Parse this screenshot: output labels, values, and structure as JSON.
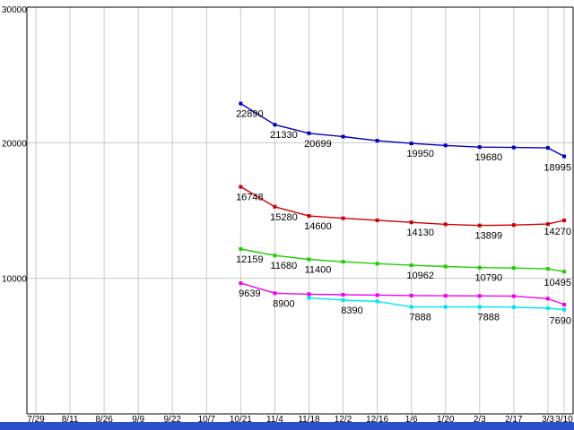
{
  "window": {
    "bottom_bar_color": "#2b50c8"
  },
  "chart_data": {
    "type": "line",
    "title": "",
    "xlabel": "",
    "ylabel": "",
    "background": "#ffffff",
    "grid": true,
    "grid_color": "#c9c9c9",
    "axis_color": "#000000",
    "label_color": "#000000",
    "ylim": [
      0,
      30000
    ],
    "y_ticks": [
      {
        "value": 30000,
        "label": "30000"
      },
      {
        "value": 20000,
        "label": "20000"
      },
      {
        "value": 10000,
        "label": "10000"
      }
    ],
    "x_tick_labels": [
      "7/29",
      "8/11",
      "8/26",
      "9/9",
      "9/22",
      "10/7",
      "10/21",
      "11/4",
      "11/18",
      "12/2",
      "12/16",
      "1/6",
      "1/20",
      "2/3",
      "2/17",
      "3/3",
      "3/10"
    ],
    "series": [
      {
        "name": "series-blue",
        "color": "#0000bb",
        "start_index": 6,
        "values": [
          22890,
          21330,
          20699,
          20450,
          20150,
          19950,
          19800,
          19680,
          19650,
          19620,
          18995
        ],
        "labels": [
          {
            "i": 6,
            "text": "22890"
          },
          {
            "i": 7,
            "text": "21330"
          },
          {
            "i": 8,
            "text": "20699"
          },
          {
            "i": 11,
            "text": "19950"
          },
          {
            "i": 13,
            "text": "19680"
          },
          {
            "i": 16,
            "text": "18995"
          }
        ]
      },
      {
        "name": "series-red",
        "color": "#cc0000",
        "start_index": 6,
        "values": [
          16748,
          15280,
          14600,
          14430,
          14280,
          14130,
          13980,
          13899,
          13930,
          14000,
          14270
        ],
        "labels": [
          {
            "i": 6,
            "text": "16748"
          },
          {
            "i": 7,
            "text": "15280"
          },
          {
            "i": 8,
            "text": "14600"
          },
          {
            "i": 11,
            "text": "14130"
          },
          {
            "i": 13,
            "text": "13899"
          },
          {
            "i": 16,
            "text": "14270"
          }
        ]
      },
      {
        "name": "series-green",
        "color": "#22cc00",
        "start_index": 6,
        "values": [
          12159,
          11680,
          11400,
          11220,
          11080,
          10962,
          10870,
          10790,
          10760,
          10700,
          10495
        ],
        "labels": [
          {
            "i": 6,
            "text": "12159"
          },
          {
            "i": 7,
            "text": "11680"
          },
          {
            "i": 8,
            "text": "11400"
          },
          {
            "i": 11,
            "text": "10962"
          },
          {
            "i": 13,
            "text": "10790"
          },
          {
            "i": 16,
            "text": "10495"
          }
        ]
      },
      {
        "name": "series-magenta",
        "color": "#ee00ee",
        "start_index": 6,
        "values": [
          9639,
          8900,
          8830,
          8790,
          8760,
          8730,
          8710,
          8700,
          8680,
          8500,
          8060
        ],
        "labels": [
          {
            "i": 6,
            "text": "9639"
          },
          {
            "i": 7,
            "text": "8900"
          }
        ]
      },
      {
        "name": "series-cyan",
        "color": "#00e5ee",
        "start_index": 8,
        "values": [
          8550,
          8390,
          8300,
          7888,
          7888,
          7888,
          7870,
          7800,
          7690
        ],
        "labels": [
          {
            "i": 9,
            "text": "8390"
          },
          {
            "i": 11,
            "text": "7888"
          },
          {
            "i": 13,
            "text": "7888"
          },
          {
            "i": 16,
            "text": "7690"
          }
        ]
      }
    ]
  }
}
